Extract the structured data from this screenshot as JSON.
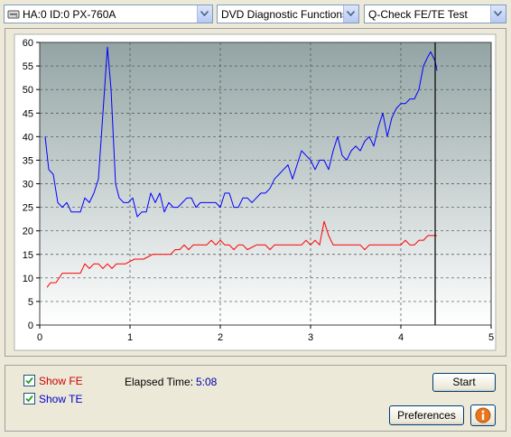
{
  "toolbar": {
    "drive": "HA:0 ID:0  PX-760A",
    "function": "DVD Diagnostic Functions",
    "test": "Q-Check FE/TE Test"
  },
  "options": {
    "show_fe_label": "Show FE",
    "show_fe_checked": true,
    "show_te_label": "Show TE",
    "show_te_checked": true,
    "elapsed_label": "Elapsed Time:",
    "elapsed_value": "5:08"
  },
  "buttons": {
    "start": "Start",
    "preferences": "Preferences",
    "info_icon": "info-icon"
  },
  "colors": {
    "te_series": "#0000ff",
    "fe_series": "#ff0000",
    "plot_bg_top": "#93a4a4",
    "plot_bg_bottom": "#ffffff"
  },
  "chart_data": {
    "type": "line",
    "xlim": [
      0,
      5
    ],
    "ylim": [
      0,
      60
    ],
    "x_ticks": [
      "0",
      "1",
      "2",
      "3",
      "4",
      "5"
    ],
    "y_ticks": [
      "0",
      "5",
      "10",
      "15",
      "20",
      "25",
      "30",
      "35",
      "40",
      "45",
      "50",
      "55",
      "60"
    ],
    "grid": true,
    "cursor_x": 4.38,
    "series": [
      {
        "color": "#0000ff",
        "points": [
          [
            0.06,
            40
          ],
          [
            0.1,
            33
          ],
          [
            0.15,
            32
          ],
          [
            0.2,
            26
          ],
          [
            0.25,
            25
          ],
          [
            0.3,
            26
          ],
          [
            0.35,
            24
          ],
          [
            0.4,
            24
          ],
          [
            0.45,
            24
          ],
          [
            0.5,
            27
          ],
          [
            0.55,
            26
          ],
          [
            0.6,
            28
          ],
          [
            0.65,
            31
          ],
          [
            0.7,
            45
          ],
          [
            0.75,
            59
          ],
          [
            0.79,
            50
          ],
          [
            0.84,
            30
          ],
          [
            0.88,
            27
          ],
          [
            0.93,
            26
          ],
          [
            0.98,
            26
          ],
          [
            1.03,
            27
          ],
          [
            1.08,
            23
          ],
          [
            1.13,
            24
          ],
          [
            1.18,
            24
          ],
          [
            1.23,
            28
          ],
          [
            1.28,
            26
          ],
          [
            1.33,
            28
          ],
          [
            1.38,
            24
          ],
          [
            1.43,
            26
          ],
          [
            1.48,
            25
          ],
          [
            1.53,
            25
          ],
          [
            1.58,
            26
          ],
          [
            1.63,
            27
          ],
          [
            1.68,
            27
          ],
          [
            1.73,
            25
          ],
          [
            1.78,
            26
          ],
          [
            1.85,
            26
          ],
          [
            1.9,
            26
          ],
          [
            1.95,
            26
          ],
          [
            2.0,
            25
          ],
          [
            2.05,
            28
          ],
          [
            2.1,
            28
          ],
          [
            2.15,
            25
          ],
          [
            2.2,
            25
          ],
          [
            2.25,
            27
          ],
          [
            2.3,
            27
          ],
          [
            2.35,
            26
          ],
          [
            2.4,
            27
          ],
          [
            2.45,
            28
          ],
          [
            2.5,
            28
          ],
          [
            2.55,
            29
          ],
          [
            2.6,
            31
          ],
          [
            2.65,
            32
          ],
          [
            2.7,
            33
          ],
          [
            2.75,
            34
          ],
          [
            2.8,
            31
          ],
          [
            2.85,
            34
          ],
          [
            2.9,
            37
          ],
          [
            2.95,
            36
          ],
          [
            3.0,
            35
          ],
          [
            3.05,
            33
          ],
          [
            3.1,
            35
          ],
          [
            3.15,
            35
          ],
          [
            3.2,
            33
          ],
          [
            3.25,
            37
          ],
          [
            3.3,
            40
          ],
          [
            3.35,
            36
          ],
          [
            3.4,
            35
          ],
          [
            3.45,
            37
          ],
          [
            3.5,
            38
          ],
          [
            3.55,
            37
          ],
          [
            3.6,
            39
          ],
          [
            3.65,
            40
          ],
          [
            3.7,
            38
          ],
          [
            3.75,
            42
          ],
          [
            3.8,
            45
          ],
          [
            3.85,
            40
          ],
          [
            3.9,
            44
          ],
          [
            3.95,
            46
          ],
          [
            4.0,
            47
          ],
          [
            4.05,
            47
          ],
          [
            4.1,
            48
          ],
          [
            4.15,
            48
          ],
          [
            4.2,
            50
          ],
          [
            4.25,
            55
          ],
          [
            4.3,
            57
          ],
          [
            4.33,
            58
          ],
          [
            4.38,
            56
          ],
          [
            4.4,
            54
          ]
        ]
      },
      {
        "color": "#ff0000",
        "points": [
          [
            0.08,
            8
          ],
          [
            0.12,
            9
          ],
          [
            0.18,
            9
          ],
          [
            0.25,
            11
          ],
          [
            0.35,
            11
          ],
          [
            0.45,
            11
          ],
          [
            0.5,
            13
          ],
          [
            0.55,
            12
          ],
          [
            0.6,
            13
          ],
          [
            0.65,
            13
          ],
          [
            0.7,
            12
          ],
          [
            0.75,
            13
          ],
          [
            0.8,
            12
          ],
          [
            0.85,
            13
          ],
          [
            0.95,
            13
          ],
          [
            1.05,
            14
          ],
          [
            1.15,
            14
          ],
          [
            1.25,
            15
          ],
          [
            1.35,
            15
          ],
          [
            1.45,
            15
          ],
          [
            1.5,
            16
          ],
          [
            1.55,
            16
          ],
          [
            1.6,
            17
          ],
          [
            1.65,
            16
          ],
          [
            1.7,
            17
          ],
          [
            1.8,
            17
          ],
          [
            1.85,
            17
          ],
          [
            1.9,
            18
          ],
          [
            1.95,
            17
          ],
          [
            2.0,
            18
          ],
          [
            2.05,
            17
          ],
          [
            2.1,
            17
          ],
          [
            2.15,
            16
          ],
          [
            2.2,
            17
          ],
          [
            2.25,
            17
          ],
          [
            2.3,
            16
          ],
          [
            2.4,
            17
          ],
          [
            2.5,
            17
          ],
          [
            2.55,
            16
          ],
          [
            2.6,
            17
          ],
          [
            2.7,
            17
          ],
          [
            2.8,
            17
          ],
          [
            2.85,
            17
          ],
          [
            2.9,
            17
          ],
          [
            2.95,
            18
          ],
          [
            3.0,
            17
          ],
          [
            3.05,
            18
          ],
          [
            3.1,
            17
          ],
          [
            3.15,
            22
          ],
          [
            3.2,
            19
          ],
          [
            3.25,
            17
          ],
          [
            3.3,
            17
          ],
          [
            3.35,
            17
          ],
          [
            3.4,
            17
          ],
          [
            3.45,
            17
          ],
          [
            3.5,
            17
          ],
          [
            3.55,
            17
          ],
          [
            3.6,
            16
          ],
          [
            3.65,
            17
          ],
          [
            3.75,
            17
          ],
          [
            3.85,
            17
          ],
          [
            3.95,
            17
          ],
          [
            4.0,
            17
          ],
          [
            4.05,
            18
          ],
          [
            4.1,
            17
          ],
          [
            4.15,
            17
          ],
          [
            4.2,
            18
          ],
          [
            4.25,
            18
          ],
          [
            4.3,
            19
          ],
          [
            4.35,
            19
          ],
          [
            4.4,
            19
          ]
        ]
      }
    ]
  }
}
